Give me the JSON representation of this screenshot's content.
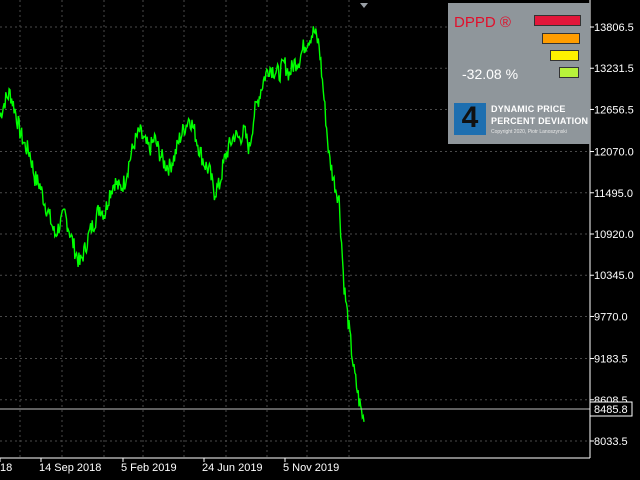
{
  "colors": {
    "background": "#000000",
    "price_line": "#00ff00",
    "grid": "#4a4a4a",
    "axis_text": "#ffffff",
    "panel_bg": "#8f969b",
    "indicator_title": "#e0102c"
  },
  "chart_data": {
    "type": "line",
    "grid": true,
    "ylim": [
      7750,
      14050
    ],
    "y_ticks": [
      "13806.5",
      "13231.5",
      "12656.5",
      "12070.0",
      "11495.0",
      "10920.0",
      "10345.0",
      "9770.0",
      "9183.5",
      "8608.5",
      "8033.5"
    ],
    "x_ticks": [
      "18",
      "14 Sep 2018",
      "5 Feb 2019",
      "24 Jun 2019",
      "5 Nov 2019"
    ],
    "current_price": "8485.8",
    "series": [
      {
        "values": [
          12560,
          12780,
          12890,
          12650,
          12350,
          12150,
          12050,
          11700,
          11600,
          11350,
          11150,
          10900,
          11050,
          11200,
          10950,
          10700,
          10500,
          10700,
          10950,
          11100,
          11300,
          11200,
          11500,
          11650,
          11550,
          11650,
          11950,
          12200,
          12350,
          12200,
          12100,
          12250,
          12050,
          11900,
          11850,
          12000,
          12250,
          12400,
          12550,
          12350,
          12100,
          11900,
          11800,
          11500,
          11600,
          11950,
          12150,
          12300,
          12250,
          12350,
          12100,
          12600,
          12850,
          13100,
          13250,
          13200,
          13150,
          13300,
          13150,
          13300,
          13350,
          13550,
          13650,
          13750,
          13550,
          12800,
          12000,
          11650,
          11400,
          10200,
          9600,
          9000,
          8600,
          8300
        ]
      }
    ]
  },
  "indicator": {
    "title": "DPPD ®",
    "percent": "-32.08 %",
    "bar_colors": [
      "#e3173a",
      "#ff9d00",
      "#fff200",
      "#b8f33b"
    ],
    "logo_digit": "4",
    "logo_line1": "DYNAMIC PRICE",
    "logo_line2": "PERCENT DEVIATION",
    "copyright": "Copyright 2020, Piotr Lanoszynski"
  }
}
